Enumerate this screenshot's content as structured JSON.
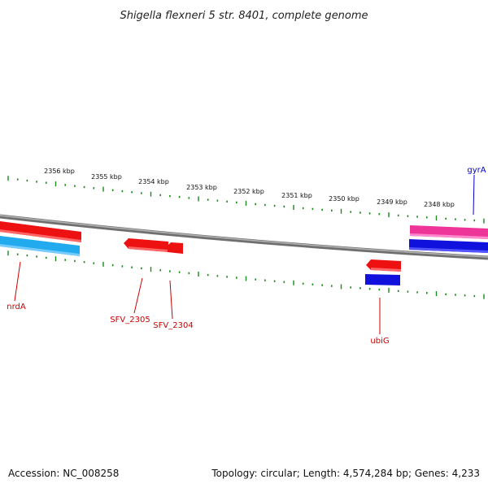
{
  "title": "Shigella flexneri 5 str. 8401, complete genome",
  "footer": {
    "accession": "Accession: NC_008258",
    "summary": "Topology: circular; Length: 4,574,284 bp; Genes: 4,233"
  },
  "scale_labels": [
    "2356 kbp",
    "2355 kbp",
    "2354 kbp",
    "2353 kbp",
    "2352 kbp",
    "2351 kbp",
    "2350 kbp",
    "2349 kbp",
    "2348 kbp"
  ],
  "gene_labels": {
    "gyrA": "gyrA",
    "nrdA": "nrdA",
    "sfv2305": "SFV_2305",
    "sfv2304": "SFV_2304",
    "ubiG": "ubiG"
  },
  "colors": {
    "backbone": "#8c8c8c",
    "tick": "#1a8a1a",
    "forward_red": "#ee1111",
    "reverse_red": "#ee1111",
    "pink": "#ee3399",
    "blue": "#1111dd",
    "cyan": "#22aaee",
    "label_red": "#cc0000",
    "label_blue": "#0000cc"
  }
}
